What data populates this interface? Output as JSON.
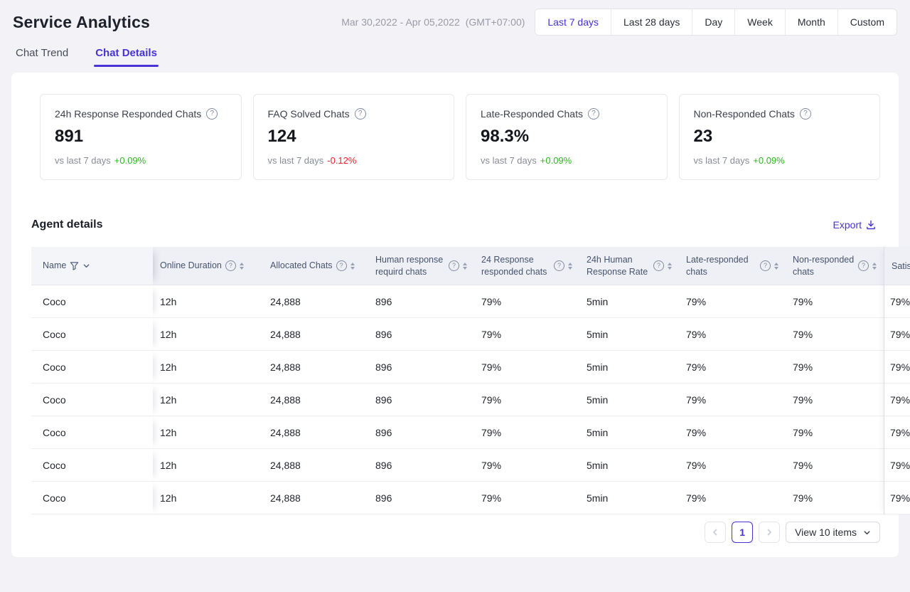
{
  "colors": {
    "accent": "#4733d6",
    "positive": "#31b424",
    "negative": "#f4222c"
  },
  "icons": {
    "help_glyph": "?"
  },
  "header": {
    "title": "Service Analytics",
    "date_range": "Mar 30,2022 - Apr 05,2022",
    "timezone": "(GMT+07:00)",
    "range_buttons": [
      {
        "label": "Last 7 days",
        "selected": true
      },
      {
        "label": "Last 28 days",
        "selected": false
      },
      {
        "label": "Day",
        "selected": false
      },
      {
        "label": "Week",
        "selected": false
      },
      {
        "label": "Month",
        "selected": false
      },
      {
        "label": "Custom",
        "selected": false
      }
    ]
  },
  "tabs": [
    {
      "label": "Chat Trend",
      "active": false
    },
    {
      "label": "Chat Details",
      "active": true
    }
  ],
  "stats": [
    {
      "label": "24h Response Responded Chats",
      "value": "891",
      "compare": "vs last 7 days",
      "delta": "+0.09%",
      "trend": "up"
    },
    {
      "label": "FAQ Solved Chats",
      "value": "124",
      "compare": "vs last 7 days",
      "delta": "-0.12%",
      "trend": "down"
    },
    {
      "label": "Late-Responded Chats",
      "value": "98.3%",
      "compare": "vs last 7 days",
      "delta": "+0.09%",
      "trend": "up"
    },
    {
      "label": "Non-Responded Chats",
      "value": "23",
      "compare": "vs last 7 days",
      "delta": "+0.09%",
      "trend": "up"
    }
  ],
  "agent_details": {
    "title": "Agent details",
    "export_label": "Export",
    "table": {
      "columns": [
        {
          "label": "Name",
          "filter": true
        },
        {
          "label": "Online Duration",
          "help": true,
          "sort": true
        },
        {
          "label": "Allocated Chats",
          "help": true,
          "sort": true
        },
        {
          "label": "Human response requird chats",
          "help": true,
          "sort": true
        },
        {
          "label": "24 Response responded chats",
          "help": true,
          "sort": true
        },
        {
          "label": "24h Human Response Rate",
          "help": true,
          "sort": true
        },
        {
          "label": "Late-responded chats",
          "help": true,
          "sort": true
        },
        {
          "label": "Non-responded chats",
          "help": true,
          "sort": true
        },
        {
          "label": "Satis",
          "pinned": true
        }
      ],
      "rows": [
        [
          "Coco",
          "12h",
          "24,888",
          "896",
          "79%",
          "5min",
          "79%",
          "79%",
          "79%"
        ],
        [
          "Coco",
          "12h",
          "24,888",
          "896",
          "79%",
          "5min",
          "79%",
          "79%",
          "79%"
        ],
        [
          "Coco",
          "12h",
          "24,888",
          "896",
          "79%",
          "5min",
          "79%",
          "79%",
          "79%"
        ],
        [
          "Coco",
          "12h",
          "24,888",
          "896",
          "79%",
          "5min",
          "79%",
          "79%",
          "79%"
        ],
        [
          "Coco",
          "12h",
          "24,888",
          "896",
          "79%",
          "5min",
          "79%",
          "79%",
          "79%"
        ],
        [
          "Coco",
          "12h",
          "24,888",
          "896",
          "79%",
          "5min",
          "79%",
          "79%",
          "79%"
        ],
        [
          "Coco",
          "12h",
          "24,888",
          "896",
          "79%",
          "5min",
          "79%",
          "79%",
          "79%"
        ]
      ]
    },
    "pagination": {
      "current_page": "1",
      "page_size_label": "View 10 items"
    }
  }
}
